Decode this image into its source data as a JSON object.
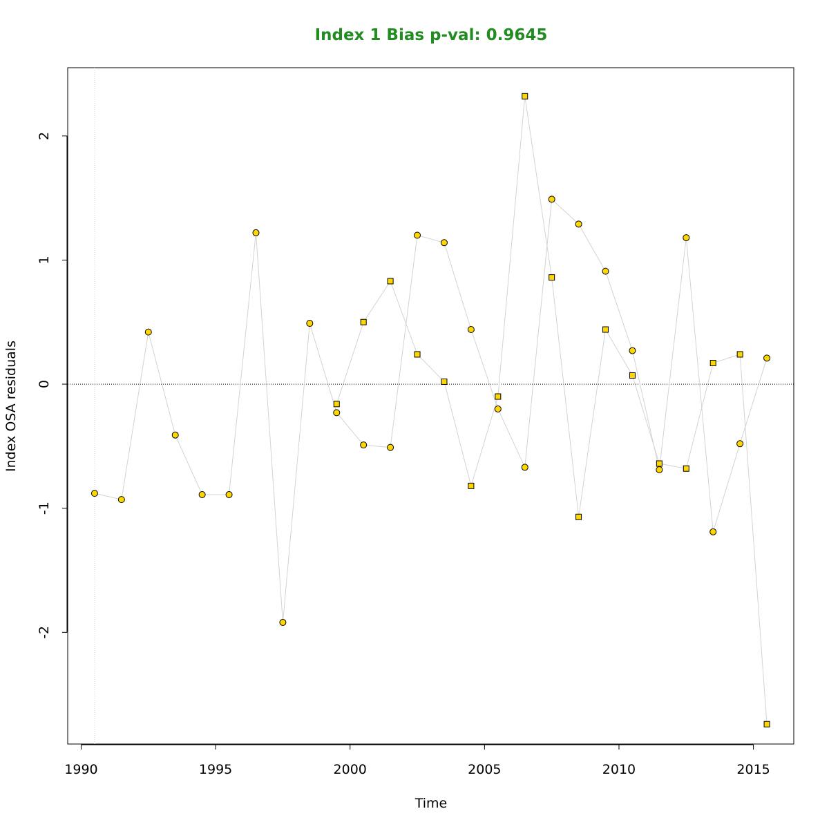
{
  "chart_data": {
    "type": "scatter",
    "title": "Index 1 Bias p-val: 0.9645",
    "xlabel": "Time",
    "ylabel": "Index OSA residuals",
    "xlim": [
      1989.5,
      2016.5
    ],
    "ylim": [
      -2.9,
      2.55
    ],
    "x_ticks": [
      1990,
      1995,
      2000,
      2005,
      2010,
      2015
    ],
    "y_ticks": [
      -2,
      -1,
      0,
      1,
      2
    ],
    "reference_line_y": 0,
    "reference_line_x": 1990.5,
    "grid": false,
    "colors": {
      "title": "#228B22",
      "point_fill": "#FFD700",
      "point_stroke": "#000000",
      "connector": "#d3d3d3",
      "zero_line": "#000000",
      "vertical_line": "#d3d3d3"
    },
    "series": [
      {
        "marker": "circle",
        "x": [
          1990.5,
          1991.5,
          1992.5,
          1993.5,
          1994.5,
          1995.5,
          1996.5,
          1997.5,
          1998.5,
          1999.5,
          2000.5,
          2001.5,
          2002.5,
          2003.5,
          2004.5,
          2005.5,
          2006.5,
          2007.5,
          2008.5,
          2009.5,
          2010.5,
          2011.5,
          2012.5,
          2013.5,
          2014.5,
          2015.5
        ],
        "y": [
          -0.88,
          -0.93,
          0.42,
          -0.41,
          -0.89,
          -0.89,
          1.22,
          -1.92,
          0.49,
          -0.23,
          -0.49,
          -0.51,
          1.2,
          1.14,
          0.44,
          -0.2,
          -0.67,
          1.49,
          1.29,
          0.91,
          0.27,
          -0.69,
          1.18,
          -1.19,
          -0.48,
          0.21
        ]
      },
      {
        "marker": "square",
        "x": [
          1999.5,
          2000.5,
          2001.5,
          2002.5,
          2003.5,
          2004.5,
          2005.5,
          2006.5,
          2007.5,
          2008.5,
          2009.5,
          2010.5,
          2011.5,
          2012.5,
          2013.5,
          2014.5,
          2015.5
        ],
        "y": [
          -0.16,
          0.5,
          0.83,
          0.24,
          0.02,
          -0.82,
          -0.1,
          2.32,
          0.86,
          -1.07,
          0.44,
          0.07,
          -0.64,
          -0.68,
          0.17,
          0.24,
          -2.74
        ]
      }
    ]
  }
}
